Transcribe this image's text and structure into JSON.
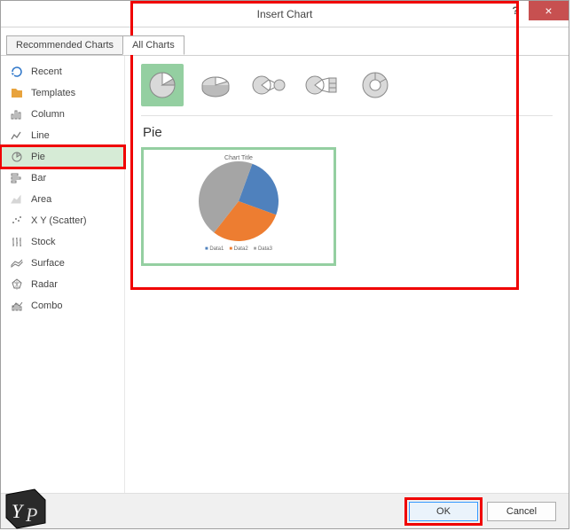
{
  "dialog": {
    "title": "Insert Chart",
    "help_label": "?",
    "close_label": "×"
  },
  "tabs": [
    {
      "label": "Recommended Charts",
      "active": false
    },
    {
      "label": "All Charts",
      "active": true
    }
  ],
  "sidebar": {
    "items": [
      {
        "label": "Recent",
        "icon": "recent-icon",
        "color": "#2f77c9",
        "selected": false
      },
      {
        "label": "Templates",
        "icon": "templates-icon",
        "color": "#e8a33d",
        "selected": false
      },
      {
        "label": "Column",
        "icon": "column-icon",
        "color": "#7a7a7a",
        "selected": false
      },
      {
        "label": "Line",
        "icon": "line-icon",
        "color": "#7a7a7a",
        "selected": false
      },
      {
        "label": "Pie",
        "icon": "pie-icon",
        "color": "#7a7a7a",
        "selected": true,
        "highlighted": true
      },
      {
        "label": "Bar",
        "icon": "bar-icon",
        "color": "#7a7a7a",
        "selected": false
      },
      {
        "label": "Area",
        "icon": "area-icon",
        "color": "#7a7a7a",
        "selected": false
      },
      {
        "label": "X Y (Scatter)",
        "icon": "scatter-icon",
        "color": "#7a7a7a",
        "selected": false
      },
      {
        "label": "Stock",
        "icon": "stock-icon",
        "color": "#7a7a7a",
        "selected": false
      },
      {
        "label": "Surface",
        "icon": "surface-icon",
        "color": "#7a7a7a",
        "selected": false
      },
      {
        "label": "Radar",
        "icon": "radar-icon",
        "color": "#7a7a7a",
        "selected": false
      },
      {
        "label": "Combo",
        "icon": "combo-icon",
        "color": "#7a7a7a",
        "selected": false
      }
    ]
  },
  "subtypes": {
    "section_label": "Pie",
    "items": [
      {
        "name": "pie",
        "selected": true
      },
      {
        "name": "pie-3d",
        "selected": false
      },
      {
        "name": "pie-of-pie",
        "selected": false
      },
      {
        "name": "bar-of-pie",
        "selected": false
      },
      {
        "name": "doughnut",
        "selected": false
      }
    ]
  },
  "preview": {
    "type": "pie",
    "title": "Chart Title",
    "title_fontsize": 7,
    "series": [
      {
        "label": "Data1",
        "value": 25,
        "color": "#4f81bd"
      },
      {
        "label": "Data2",
        "value": 30,
        "color": "#ed7d31"
      },
      {
        "label": "Data3",
        "value": 45,
        "color": "#a5a5a5"
      }
    ],
    "background_color": "#ffffff",
    "border_color": "#94cfa1",
    "legend_position": "bottom"
  },
  "footer": {
    "ok_label": "OK",
    "cancel_label": "Cancel"
  },
  "highlights": {
    "color": "#f00000",
    "regions": [
      "sidebar-item-pie",
      "main-panel",
      "ok-button"
    ]
  },
  "icon_stroke": "#808080"
}
